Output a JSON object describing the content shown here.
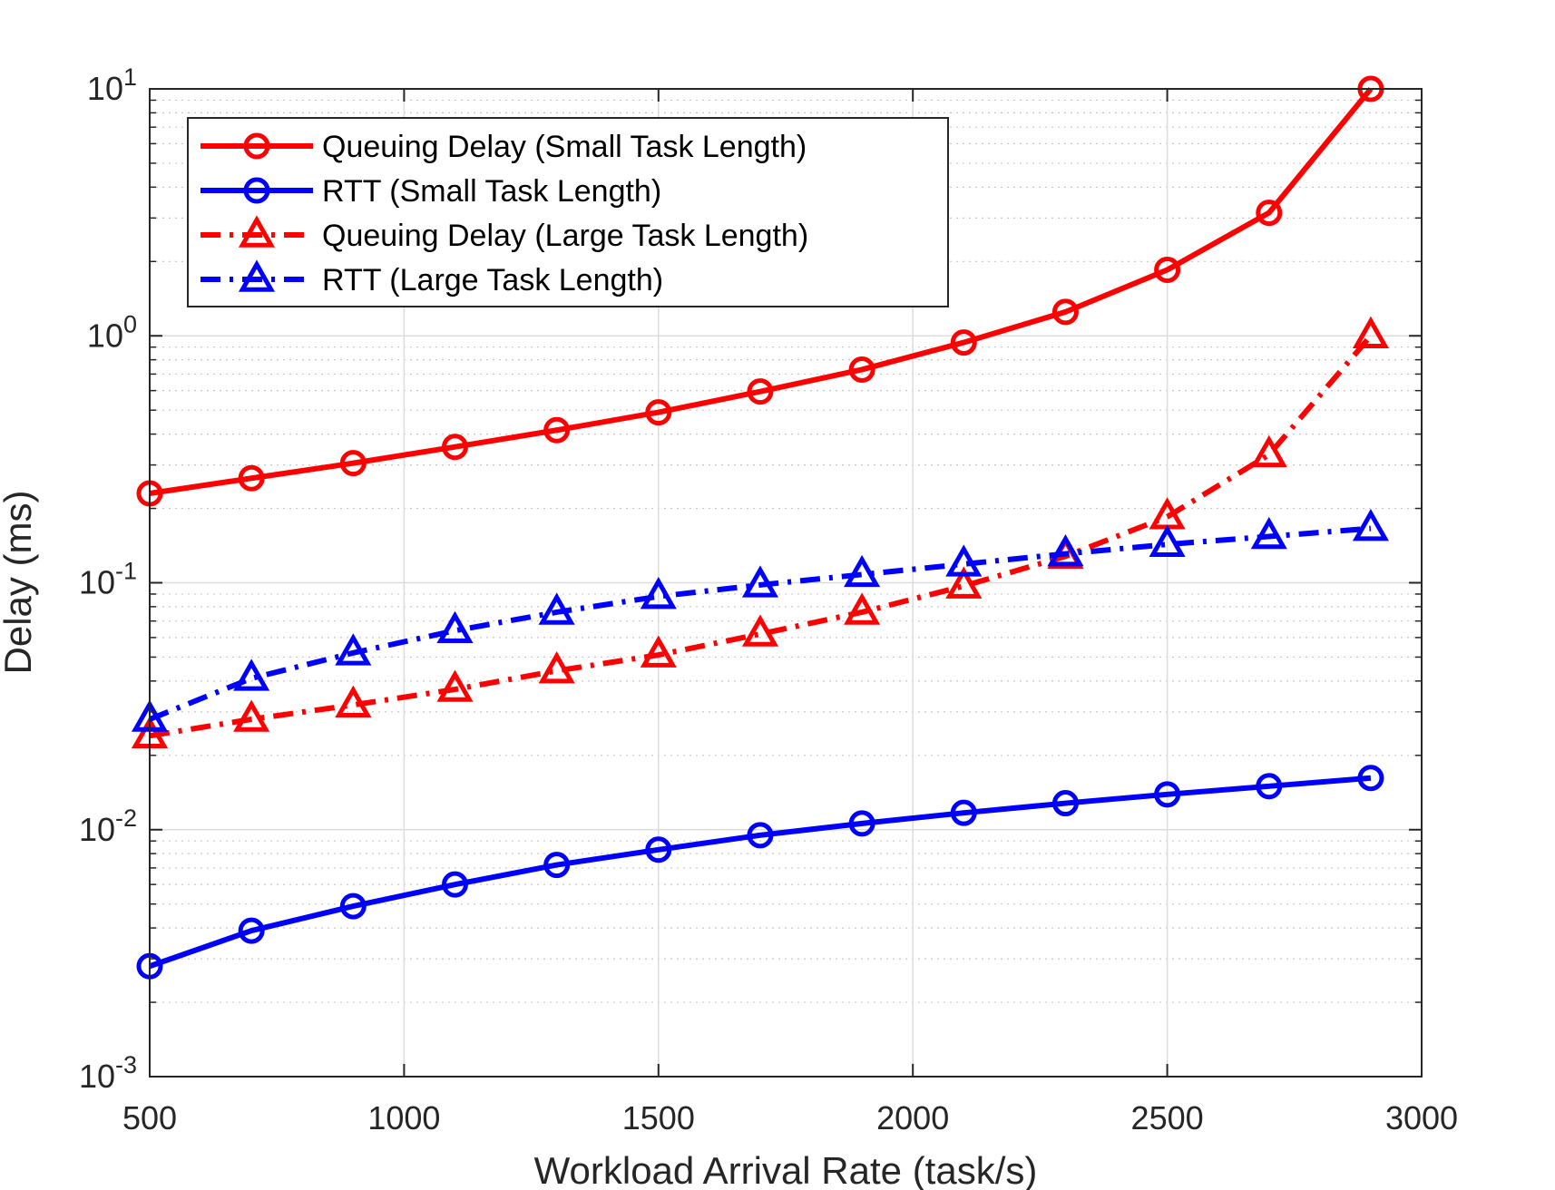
{
  "chart_data": {
    "type": "line",
    "xlabel": "Workload Arrival Rate (task/s)",
    "ylabel": "Delay (ms)",
    "xlim": [
      500,
      3000
    ],
    "ylim": [
      0.001,
      10
    ],
    "yscale": "log",
    "grid": true,
    "legend_position": "top-left",
    "x_ticks": [
      500,
      1000,
      1500,
      2000,
      2500,
      3000
    ],
    "y_ticks": [
      {
        "value": 0.001,
        "base": "10",
        "exp": "-3"
      },
      {
        "value": 0.01,
        "base": "10",
        "exp": "-2"
      },
      {
        "value": 0.1,
        "base": "10",
        "exp": "-1"
      },
      {
        "value": 1,
        "base": "10",
        "exp": "0"
      },
      {
        "value": 10,
        "base": "10",
        "exp": "1"
      }
    ],
    "x": [
      500,
      700,
      900,
      1100,
      1300,
      1500,
      1700,
      1900,
      2100,
      2300,
      2500,
      2700,
      2900
    ],
    "series": [
      {
        "name": "Queuing Delay (Small Task Length)",
        "color": "#ff0000",
        "line": "solid",
        "marker": "circle",
        "values": [
          0.23,
          0.265,
          0.305,
          0.355,
          0.415,
          0.49,
          0.595,
          0.73,
          0.94,
          1.25,
          1.85,
          3.15,
          10.0
        ]
      },
      {
        "name": "RTT (Small Task Length)",
        "color": "#0000ff",
        "line": "solid",
        "marker": "circle",
        "values": [
          0.0028,
          0.0039,
          0.0049,
          0.006,
          0.0072,
          0.0083,
          0.0095,
          0.0106,
          0.0117,
          0.0128,
          0.0139,
          0.015,
          0.0162
        ]
      },
      {
        "name": "Queuing Delay (Large Task Length)",
        "color": "#ff0000",
        "line": "dashdot",
        "marker": "triangle",
        "values": [
          0.024,
          0.028,
          0.032,
          0.037,
          0.044,
          0.051,
          0.062,
          0.076,
          0.097,
          0.128,
          0.185,
          0.33,
          1.0
        ]
      },
      {
        "name": "RTT (Large Task Length)",
        "color": "#0000ff",
        "line": "dashdot",
        "marker": "triangle",
        "values": [
          0.028,
          0.041,
          0.052,
          0.064,
          0.076,
          0.088,
          0.098,
          0.108,
          0.119,
          0.131,
          0.143,
          0.154,
          0.166
        ]
      }
    ]
  }
}
